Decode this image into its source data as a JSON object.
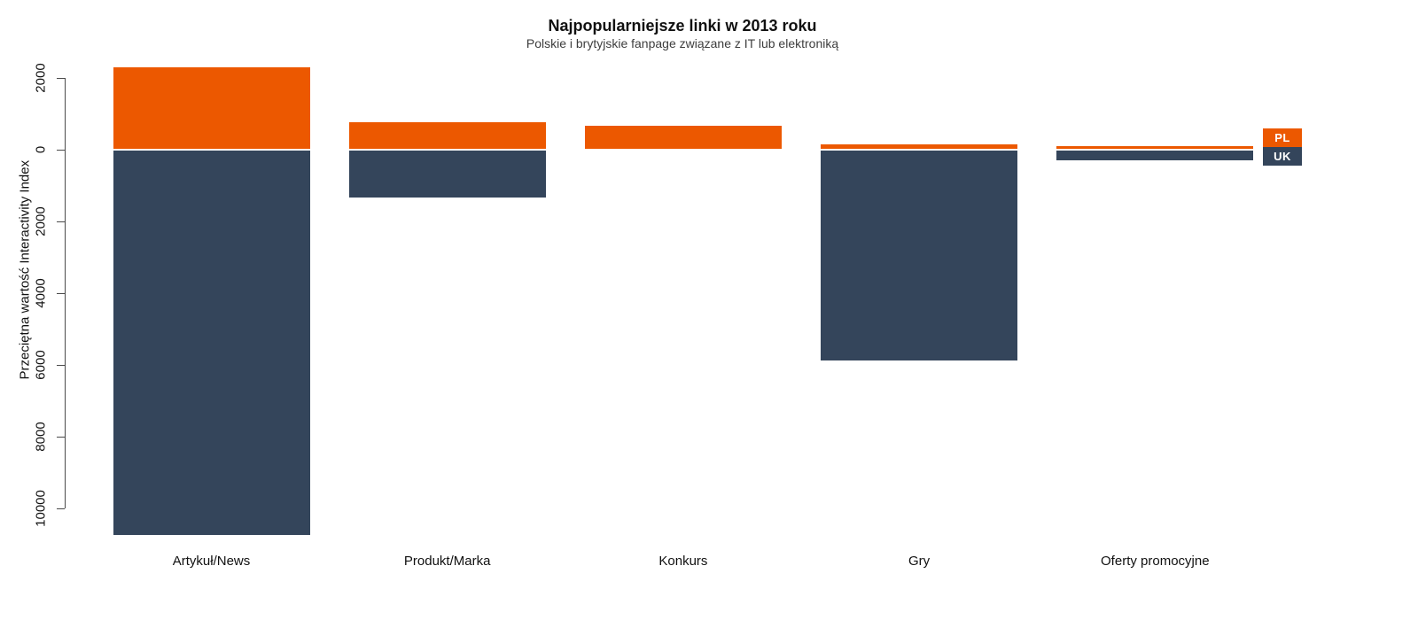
{
  "chart_data": {
    "type": "bar",
    "variant": "diverging-stacked-pyramid",
    "title": "Najpopularniejsze linki w 2013 roku",
    "subtitle": "Polskie i brytyjskie fanpage związane z IT lub elektroniką",
    "ylabel": "Przeciętna wartość Interactivity Index",
    "xlabel": "",
    "categories": [
      "Artykuł/News",
      "Produkt/Marka",
      "Konkurs",
      "Gry",
      "Oferty promocyjne"
    ],
    "series": [
      {
        "name": "PL",
        "direction": "up",
        "color": "#EC5800",
        "values": [
          2280,
          730,
          630,
          130,
          75
        ]
      },
      {
        "name": "UK",
        "direction": "down",
        "color": "#34455B",
        "values": [
          10720,
          1320,
          0,
          5850,
          270
        ]
      }
    ],
    "y_axis": {
      "ticks": [
        2000,
        0,
        -2000,
        -4000,
        -6000,
        -8000,
        -10000
      ],
      "tick_labels": [
        "2000",
        "0",
        "2000",
        "4000",
        "6000",
        "8000",
        "10000"
      ],
      "note": "labels show magnitude; negative side is UK values drawn downward",
      "range": [
        -10900,
        2300
      ],
      "grid": false
    },
    "legend": {
      "position": "right",
      "entries": [
        {
          "label": "PL",
          "color": "#EC5800"
        },
        {
          "label": "UK",
          "color": "#34455B"
        }
      ]
    }
  }
}
